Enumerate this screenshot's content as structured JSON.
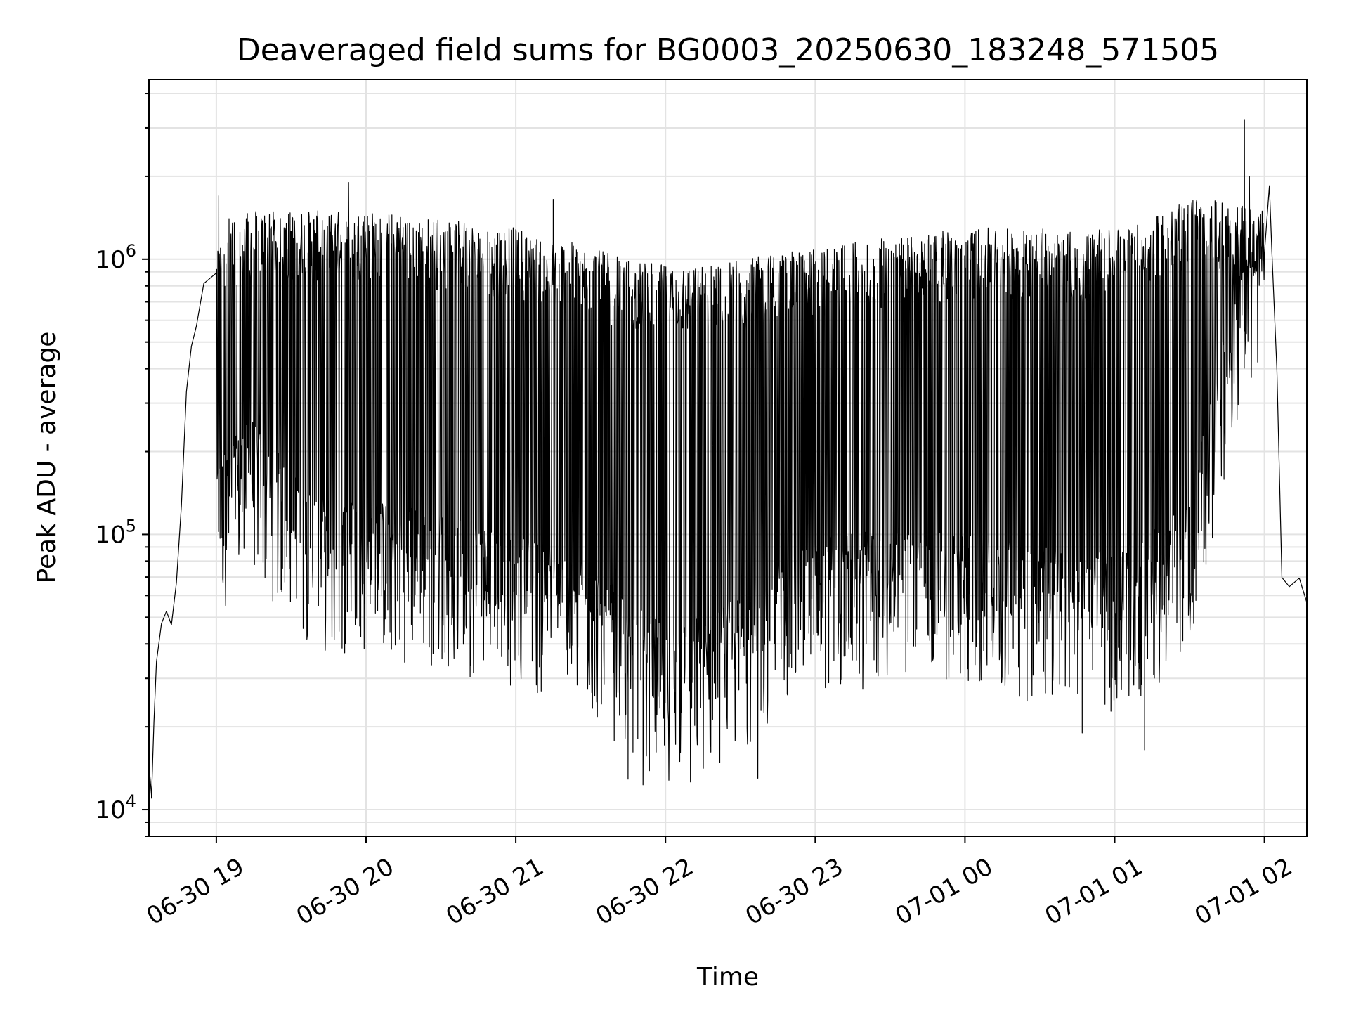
{
  "chart_data": {
    "type": "line",
    "title": "Deaveraged field sums for BG0003_20250630_183248_571505",
    "xlabel": "Time",
    "ylabel": "Peak ADU - average",
    "x_range": [
      "2025-06-30T18:33",
      "2025-07-01T02:17"
    ],
    "ylim": [
      8000,
      4500000
    ],
    "y_scale": "log",
    "grid": true,
    "line_color": "#000000",
    "x_ticks": [
      {
        "value": "2025-06-30T19:00",
        "label": "06-30 19"
      },
      {
        "value": "2025-06-30T20:00",
        "label": "06-30 20"
      },
      {
        "value": "2025-06-30T21:00",
        "label": "06-30 21"
      },
      {
        "value": "2025-06-30T22:00",
        "label": "06-30 22"
      },
      {
        "value": "2025-06-30T23:00",
        "label": "06-30 23"
      },
      {
        "value": "2025-07-01T00:00",
        "label": "07-01 00"
      },
      {
        "value": "2025-07-01T01:00",
        "label": "07-01 01"
      },
      {
        "value": "2025-07-01T02:00",
        "label": "07-01 02"
      }
    ],
    "y_ticks": [
      {
        "value": 10000,
        "base": "10",
        "exp": "4"
      },
      {
        "value": 100000,
        "base": "10",
        "exp": "5"
      },
      {
        "value": 1000000,
        "base": "10",
        "exp": "6"
      }
    ],
    "series": [
      {
        "points": [
          [
            "2025-06-30T18:33",
            14000
          ],
          [
            "2025-06-30T18:34",
            12000
          ],
          [
            "2025-06-30T18:35",
            20000
          ],
          [
            "2025-06-30T18:36",
            30000
          ],
          [
            "2025-06-30T18:38",
            45000
          ],
          [
            "2025-06-30T18:40",
            50000
          ],
          [
            "2025-06-30T18:42",
            52000
          ],
          [
            "2025-06-30T18:44",
            60000
          ],
          [
            "2025-06-30T18:46",
            120000
          ],
          [
            "2025-06-30T18:48",
            300000
          ],
          [
            "2025-06-30T18:50",
            450000
          ],
          [
            "2025-06-30T18:52",
            600000
          ],
          [
            "2025-06-30T18:55",
            750000
          ],
          [
            "2025-06-30T19:00",
            650000
          ],
          [
            "2025-06-30T19:03",
            400000
          ],
          [
            "2025-06-30T19:05",
            900000
          ],
          [
            "2025-06-30T19:08",
            500000
          ],
          [
            "2025-06-30T19:10",
            1200000
          ],
          [
            "2025-06-30T19:15",
            250000
          ],
          [
            "2025-06-30T19:20",
            300000
          ],
          [
            "2025-06-30T19:25",
            150000
          ],
          [
            "2025-06-30T19:30",
            400000
          ],
          [
            "2025-06-30T19:40",
            350000
          ],
          [
            "2025-06-30T19:50",
            400000
          ],
          [
            "2025-06-30T20:00",
            300000
          ],
          [
            "2025-06-30T20:15",
            150000
          ],
          [
            "2025-06-30T20:30",
            100000
          ],
          [
            "2025-06-30T20:45",
            80000
          ],
          [
            "2025-06-30T21:00",
            70000
          ],
          [
            "2025-06-30T21:20",
            60000
          ],
          [
            "2025-06-30T21:40",
            45000
          ],
          [
            "2025-06-30T21:55",
            35000
          ],
          [
            "2025-06-30T22:10",
            50000
          ],
          [
            "2025-06-30T22:30",
            80000
          ],
          [
            "2025-06-30T23:00",
            110000
          ],
          [
            "2025-06-30T23:30",
            110000
          ],
          [
            "2025-07-01T00:00",
            100000
          ],
          [
            "2025-07-01T00:30",
            100000
          ],
          [
            "2025-07-01T01:00",
            90000
          ],
          [
            "2025-07-01T01:15",
            150000
          ],
          [
            "2025-07-01T01:30",
            300000
          ],
          [
            "2025-07-01T01:45",
            500000
          ],
          [
            "2025-07-01T02:00",
            700000
          ],
          [
            "2025-07-01T02:03",
            1100000
          ],
          [
            "2025-07-01T02:05",
            350000
          ],
          [
            "2025-07-01T02:07",
            70000
          ],
          [
            "2025-07-01T02:10",
            65000
          ],
          [
            "2025-07-01T02:14",
            70000
          ],
          [
            "2025-07-01T02:17",
            55000
          ]
        ],
        "envelope": [
          [
            "2025-06-30T19:00",
            55000,
            1400000
          ],
          [
            "2025-06-30T19:15",
            80000,
            1500000
          ],
          [
            "2025-06-30T19:30",
            50000,
            1500000
          ],
          [
            "2025-06-30T19:45",
            40000,
            1500000
          ],
          [
            "2025-06-30T20:00",
            40000,
            1500000
          ],
          [
            "2025-06-30T20:15",
            38000,
            1450000
          ],
          [
            "2025-06-30T20:30",
            36000,
            1400000
          ],
          [
            "2025-06-30T20:45",
            33000,
            1350000
          ],
          [
            "2025-06-30T21:00",
            30000,
            1300000
          ],
          [
            "2025-06-30T21:15",
            27000,
            1200000
          ],
          [
            "2025-06-30T21:30",
            24000,
            1100000
          ],
          [
            "2025-06-30T21:45",
            17000,
            1000000
          ],
          [
            "2025-06-30T22:00",
            14000,
            950000
          ],
          [
            "2025-06-30T22:15",
            15000,
            950000
          ],
          [
            "2025-06-30T22:30",
            18000,
            1000000
          ],
          [
            "2025-06-30T22:45",
            24000,
            1050000
          ],
          [
            "2025-06-30T23:00",
            28000,
            1100000
          ],
          [
            "2025-06-30T23:15",
            30000,
            1150000
          ],
          [
            "2025-06-30T23:30",
            30000,
            1200000
          ],
          [
            "2025-06-30T23:45",
            30000,
            1250000
          ],
          [
            "2025-07-01T00:00",
            30000,
            1300000
          ],
          [
            "2025-07-01T00:15",
            28000,
            1300000
          ],
          [
            "2025-07-01T00:30",
            27000,
            1300000
          ],
          [
            "2025-07-01T00:45",
            26000,
            1250000
          ],
          [
            "2025-07-01T01:00",
            25000,
            1300000
          ],
          [
            "2025-07-01T01:15",
            30000,
            1400000
          ],
          [
            "2025-07-01T01:30",
            40000,
            1700000
          ],
          [
            "2025-07-01T01:45",
            200000,
            1600000
          ],
          [
            "2025-07-01T02:00",
            500000,
            1500000
          ]
        ],
        "spikes": [
          [
            "2025-06-30T19:01",
            1700000
          ],
          [
            "2025-06-30T19:53",
            1900000
          ],
          [
            "2025-06-30T21:15",
            1650000
          ],
          [
            "2025-07-01T01:52",
            3200000
          ],
          [
            "2025-07-01T01:54",
            2000000
          ],
          [
            "2025-07-01T02:02",
            1850000
          ]
        ],
        "dips": [
          [
            "2025-06-30T18:34",
            11000
          ],
          [
            "2025-06-30T21:51",
            12300
          ],
          [
            "2025-06-30T21:45",
            12900
          ],
          [
            "2025-06-30T22:10",
            12600
          ],
          [
            "2025-06-30T22:37",
            13000
          ],
          [
            "2025-07-01T00:47",
            19000
          ],
          [
            "2025-07-01T01:12",
            16500
          ]
        ]
      }
    ]
  }
}
